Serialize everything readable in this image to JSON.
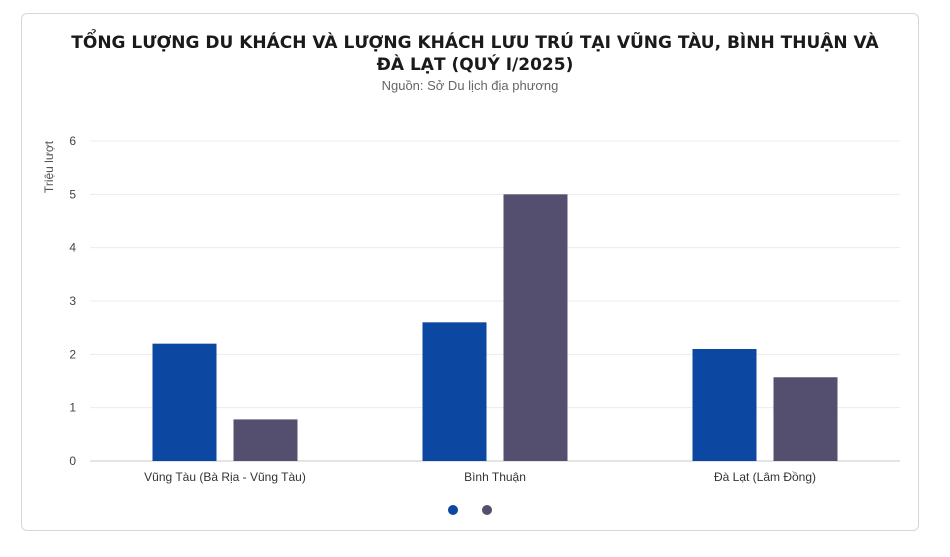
{
  "chart_data": {
    "type": "bar",
    "title": "TỔNG LƯỢNG DU KHÁCH VÀ LƯỢNG KHÁCH LƯU TRÚ TẠI VŨNG TÀU, BÌNH THUẬN VÀ ĐÀ LẠT (QUÝ I/2025)",
    "subtitle": "Nguồn: Sở Du lịch địa phương",
    "xlabel": "",
    "ylabel": "Triệu lượt",
    "ylim": [
      0,
      6
    ],
    "yticks": [
      "0",
      "1",
      "2",
      "3",
      "4",
      "5",
      "6"
    ],
    "grid": true,
    "legend_placement": "bottom",
    "categories": [
      "Vũng Tàu (Bà Rịa - Vũng Tàu)",
      "Bình Thuận",
      "Đà Lạt (Lâm Đồng)"
    ],
    "series": [
      {
        "values": [
          2.2,
          2.6,
          2.1
        ],
        "color": "#0c47a1"
      },
      {
        "values": [
          0.78,
          5.0,
          1.57
        ],
        "color": "#544f6e"
      }
    ]
  }
}
